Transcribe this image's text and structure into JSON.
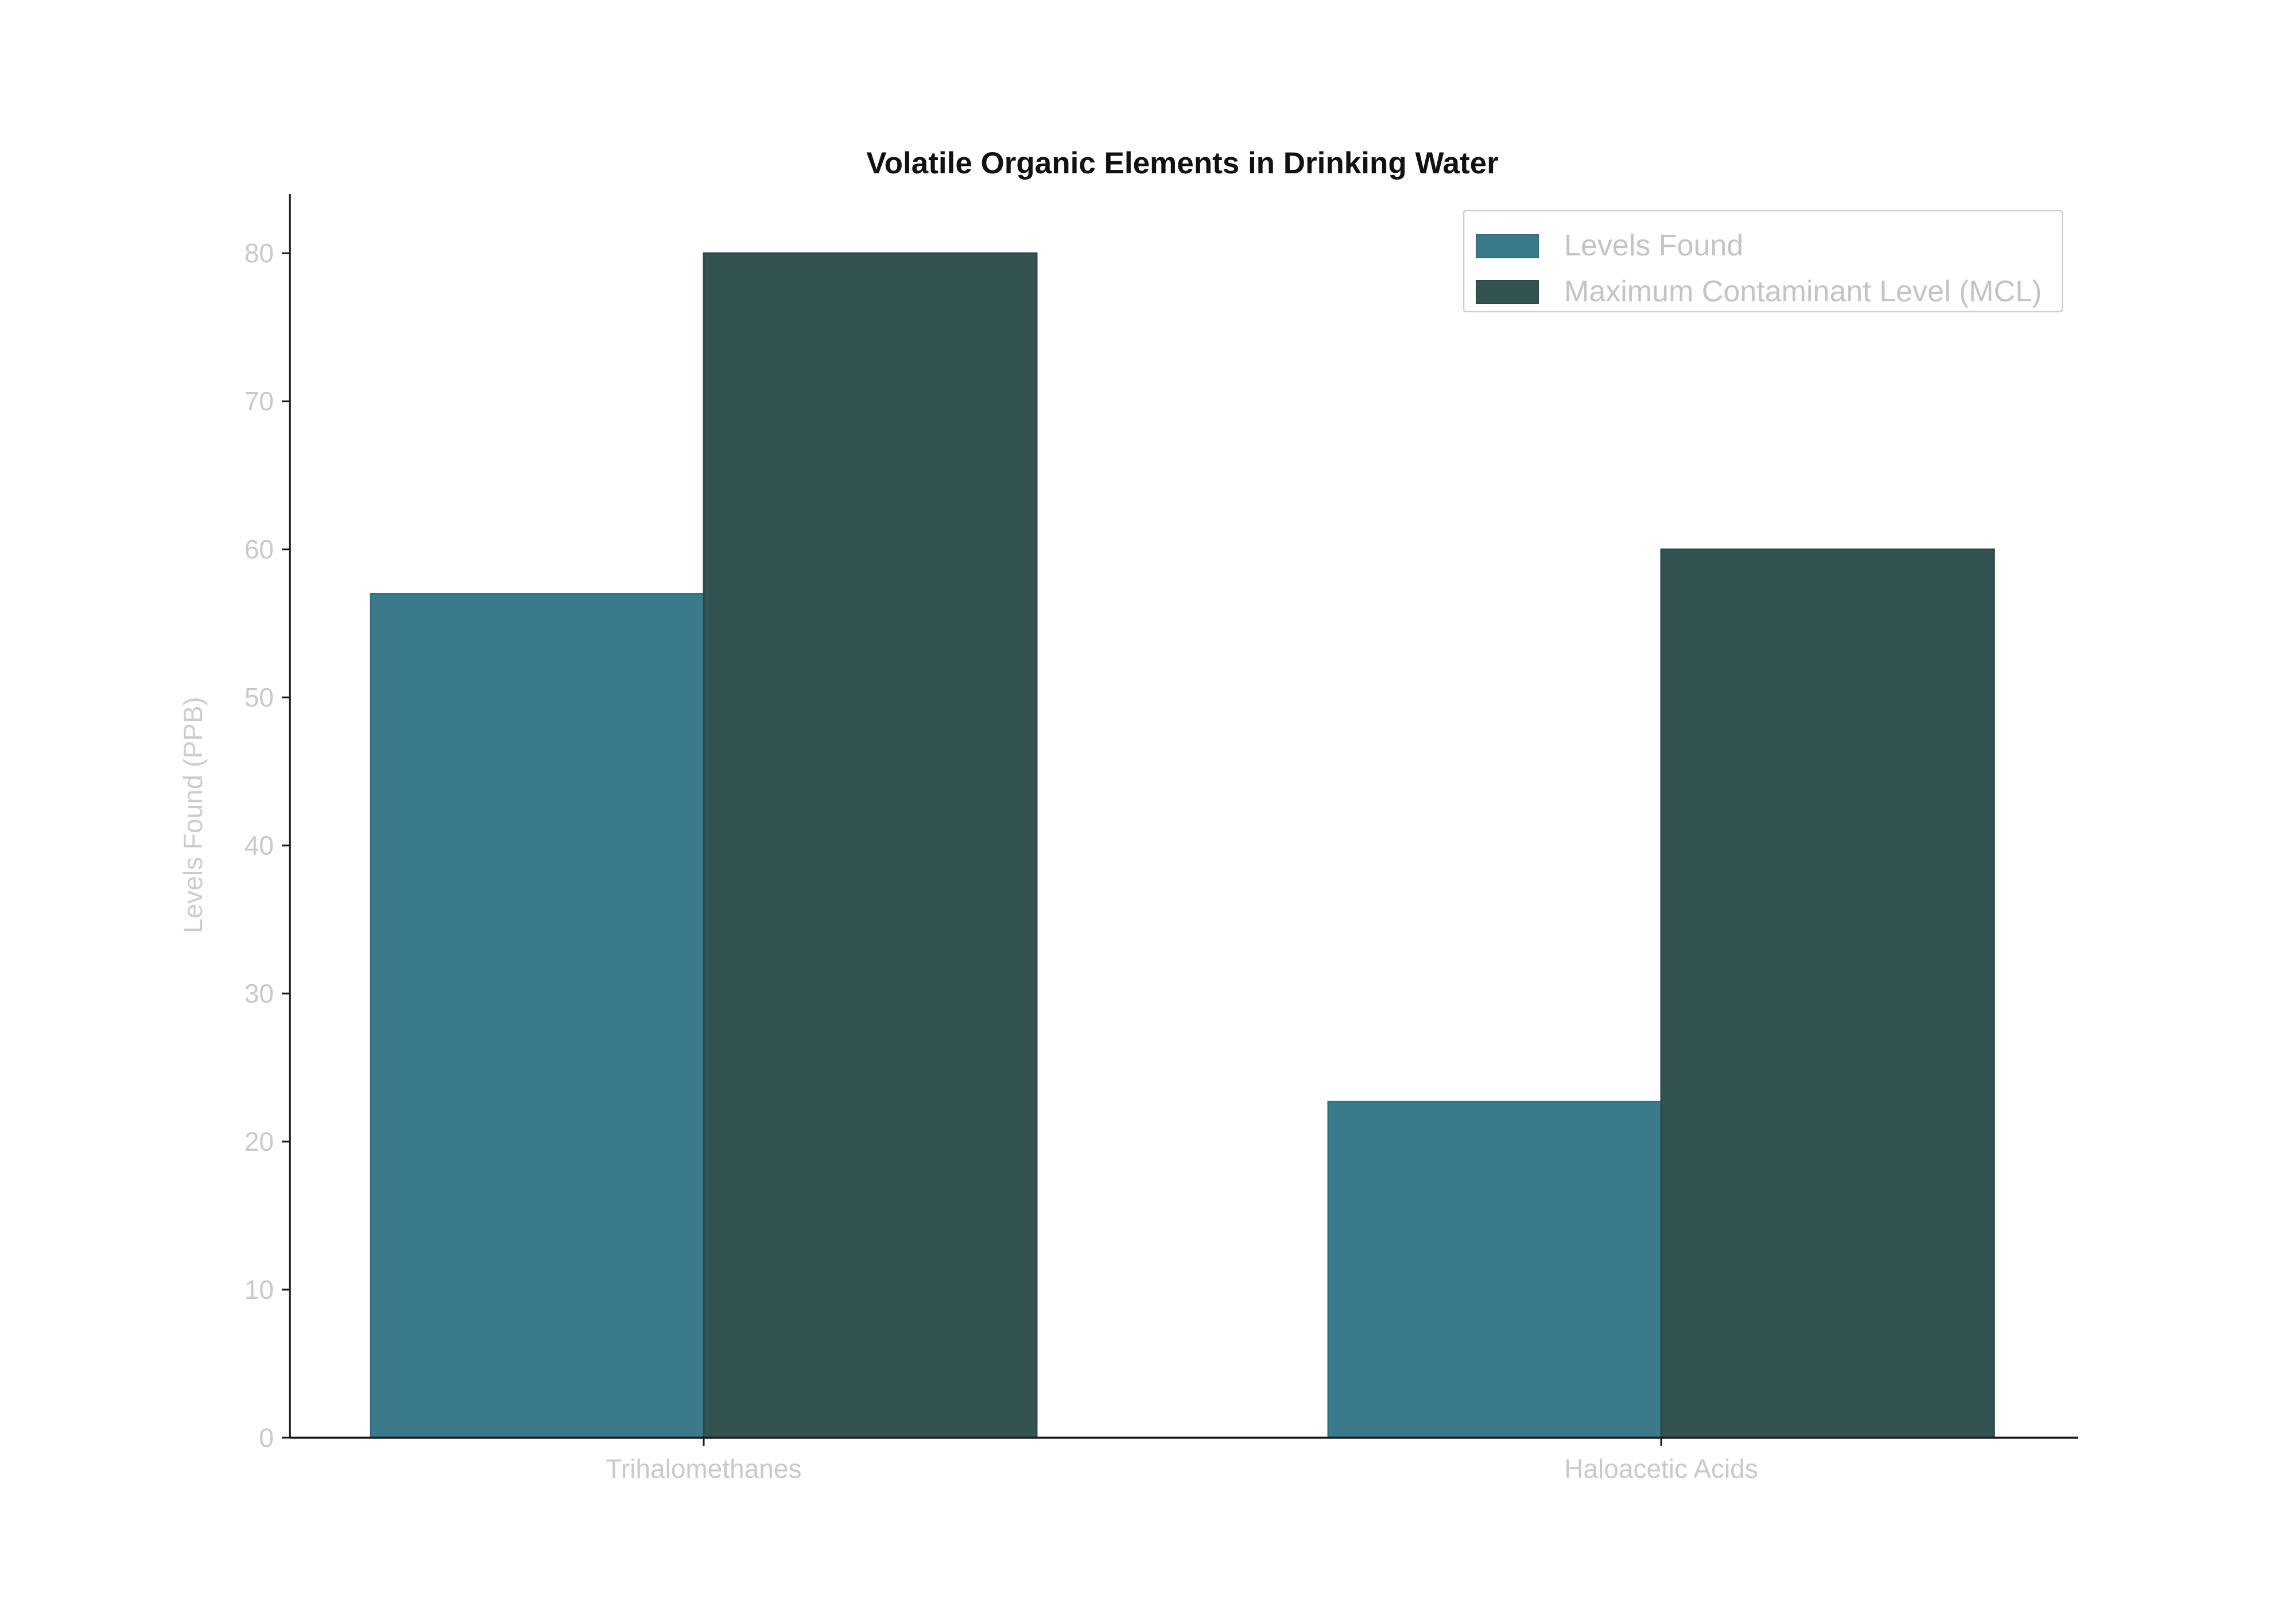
{
  "chart_data": {
    "type": "bar",
    "title": "Volatile Organic Elements in Drinking Water",
    "xlabel": "",
    "ylabel": "Levels Found (PPB)",
    "categories": [
      "Trihalomethanes",
      "Haloacetic Acids"
    ],
    "series": [
      {
        "name": "Levels Found",
        "values": [
          57,
          22.7
        ],
        "color": "#3a7a8a"
      },
      {
        "name": "Maximum Contaminant Level (MCL)",
        "values": [
          80,
          60
        ],
        "color": "#325352"
      }
    ],
    "ylim": [
      0,
      84
    ],
    "yticks": [
      0,
      10,
      20,
      30,
      40,
      50,
      60,
      70,
      80
    ],
    "grid": false,
    "legend_position": "top-right"
  }
}
